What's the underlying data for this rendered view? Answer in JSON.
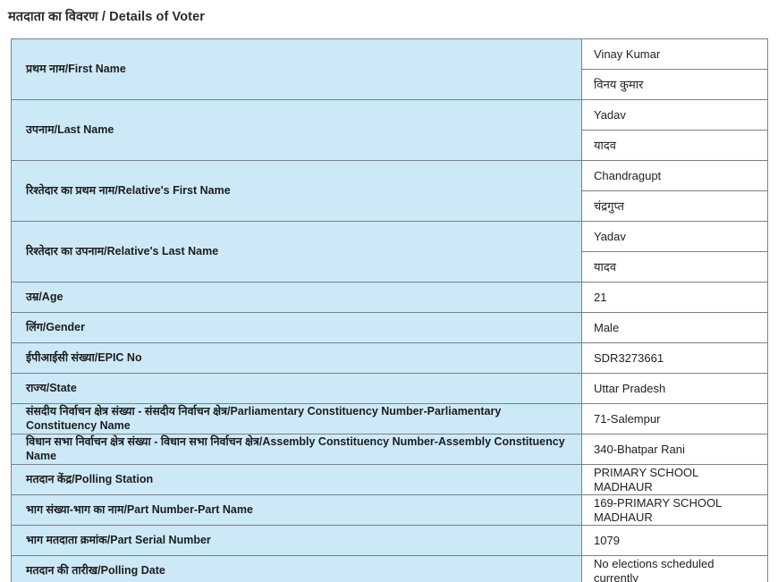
{
  "page": {
    "title": "मतदाता का विवरण / Details of Voter"
  },
  "colors": {
    "label_cell_background": "#cde9f8",
    "value_cell_background": "#ffffff",
    "table_border": "#7d8084",
    "title_text": "#2b2b2b"
  },
  "table": {
    "rows": [
      {
        "label": "प्रथम नाम/First Name",
        "values": [
          "Vinay Kumar",
          "विनय कुमार"
        ]
      },
      {
        "label": "उपनाम/Last Name",
        "values": [
          "Yadav",
          "यादव"
        ]
      },
      {
        "label": "रिश्तेदार का प्रथम नाम/Relative's First Name",
        "values": [
          "Chandragupt",
          "चंद्रगुप्त"
        ]
      },
      {
        "label": "रिश्तेदार का उपनाम/Relative's Last Name",
        "values": [
          "Yadav",
          "यादव"
        ]
      },
      {
        "label": "उम्र/Age",
        "values": [
          "21"
        ]
      },
      {
        "label": "लिंग/Gender",
        "values": [
          "Male"
        ]
      },
      {
        "label": "ईपीआईसी संख्या/EPIC No",
        "values": [
          "SDR3273661"
        ]
      },
      {
        "label": "राज्य/State",
        "values": [
          "Uttar Pradesh"
        ]
      },
      {
        "label": "संसदीय निर्वाचन क्षेत्र संख्या - संसदीय निर्वाचन क्षेत्र/Parliamentary Constituency Number-Parliamentary Constituency Name",
        "values": [
          "71-Salempur"
        ]
      },
      {
        "label": "विधान सभा निर्वाचन क्षेत्र संख्या - विधान सभा निर्वाचन क्षेत्र/Assembly Constituency Number-Assembly Constituency Name",
        "values": [
          "340-Bhatpar Rani"
        ]
      },
      {
        "label": "मतदान केंद्र/Polling Station",
        "values": [
          "PRIMARY SCHOOL MADHAUR"
        ]
      },
      {
        "label": "भाग संख्या-भाग का नाम/Part Number-Part Name",
        "values": [
          "169-PRIMARY SCHOOL MADHAUR"
        ]
      },
      {
        "label": "भाग मतदाता क्रमांक/Part Serial Number",
        "values": [
          "1079"
        ]
      },
      {
        "label": "मतदान की तारीख/Polling Date",
        "values": [
          "No elections scheduled currently"
        ]
      }
    ]
  }
}
